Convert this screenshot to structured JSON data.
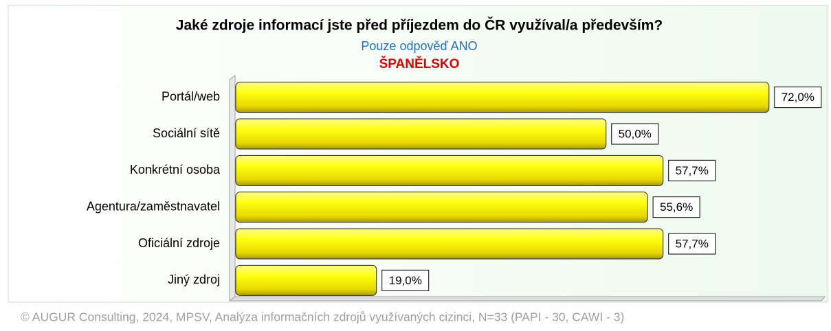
{
  "chart_data": {
    "type": "bar",
    "orientation": "horizontal",
    "title": "Jaké zdroje informací jste před příjezdem do ČR využíval/a především?",
    "subtitle": "Pouze odpověď ANO",
    "region": "ŠPANĚLSKO",
    "categories": [
      "Portál/web",
      "Sociální sítě",
      "Konkrétní osoba",
      "Agentura/zaměstnavatel",
      "Oficiální zdroje",
      "Jiný zdroj"
    ],
    "values": [
      72.0,
      50.0,
      57.7,
      55.6,
      57.7,
      19.0
    ],
    "value_labels": [
      "72,0%",
      "50,0%",
      "57,7%",
      "55,6%",
      "57,7%",
      "19,0%"
    ],
    "color": "#ffff00",
    "xlim": [
      0,
      80
    ],
    "source": "© AUGUR Consulting, 2024, MPSV, Analýza informačních zdrojů využívaných cizinci, N=33 (PAPI - 30, CAWI - 3)"
  }
}
